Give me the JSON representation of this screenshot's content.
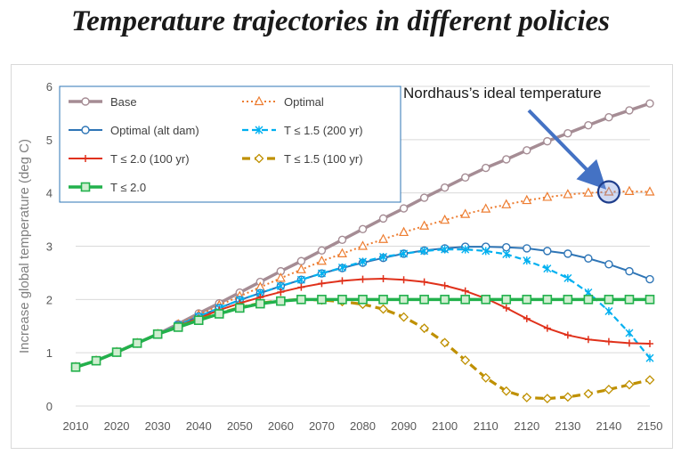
{
  "title": "Temperature trajectories in different policies",
  "chart_data": {
    "type": "line",
    "title": "Temperature trajectories in different policies",
    "xlabel": "",
    "ylabel": "Increase global temperature (deg C)",
    "xlim": [
      2010,
      2150
    ],
    "ylim": [
      0,
      6
    ],
    "x_ticks": [
      "2010",
      "2020",
      "2030",
      "2040",
      "2050",
      "2060",
      "2070",
      "2080",
      "2090",
      "2100",
      "2110",
      "2120",
      "2130",
      "2140",
      "2150"
    ],
    "y_ticks": [
      "0",
      "1",
      "2",
      "3",
      "4",
      "5",
      "6"
    ],
    "grid": "horizontal",
    "x": [
      2010,
      2015,
      2020,
      2025,
      2030,
      2035,
      2040,
      2045,
      2050,
      2055,
      2060,
      2065,
      2070,
      2075,
      2080,
      2085,
      2090,
      2095,
      2100,
      2105,
      2110,
      2115,
      2120,
      2125,
      2130,
      2135,
      2140,
      2145,
      2150
    ],
    "series": [
      {
        "name": "Base",
        "color": "#a58c94",
        "marker": "circle",
        "values": [
          0.73,
          0.85,
          1.01,
          1.18,
          1.35,
          1.54,
          1.74,
          1.93,
          2.13,
          2.33,
          2.53,
          2.72,
          2.92,
          3.12,
          3.32,
          3.52,
          3.71,
          3.91,
          4.1,
          4.29,
          4.47,
          4.63,
          4.8,
          4.97,
          5.12,
          5.27,
          5.42,
          5.55,
          5.68
        ]
      },
      {
        "name": "Optimal",
        "color": "#ed7d31",
        "marker": "triangle",
        "values": [
          0.73,
          0.85,
          1.01,
          1.18,
          1.35,
          1.53,
          1.71,
          1.89,
          2.06,
          2.23,
          2.4,
          2.56,
          2.72,
          2.86,
          3.0,
          3.13,
          3.26,
          3.38,
          3.49,
          3.6,
          3.7,
          3.78,
          3.86,
          3.92,
          3.97,
          4.0,
          4.02,
          4.03,
          4.02
        ]
      },
      {
        "name": "Optimal (alt dam)",
        "color": "#2e75b6",
        "marker": "circle",
        "values": [
          0.73,
          0.85,
          1.01,
          1.18,
          1.35,
          1.52,
          1.68,
          1.84,
          1.99,
          2.12,
          2.25,
          2.37,
          2.49,
          2.59,
          2.69,
          2.78,
          2.86,
          2.92,
          2.96,
          2.99,
          2.99,
          2.98,
          2.96,
          2.91,
          2.86,
          2.77,
          2.66,
          2.53,
          2.38
        ]
      },
      {
        "name": "T ≤ 1.5 (200 yr)",
        "color": "#00b0f0",
        "marker": "asterisk",
        "values": [
          0.73,
          0.85,
          1.01,
          1.18,
          1.35,
          1.52,
          1.68,
          1.84,
          1.99,
          2.12,
          2.25,
          2.37,
          2.49,
          2.6,
          2.71,
          2.8,
          2.86,
          2.91,
          2.94,
          2.94,
          2.91,
          2.85,
          2.73,
          2.58,
          2.4,
          2.13,
          1.78,
          1.37,
          0.9
        ]
      },
      {
        "name": "T ≤ 2.0 (100 yr)",
        "color": "#e0311b",
        "marker": "plus",
        "values": [
          0.73,
          0.85,
          1.01,
          1.18,
          1.35,
          1.5,
          1.65,
          1.8,
          1.93,
          2.04,
          2.14,
          2.23,
          2.3,
          2.35,
          2.38,
          2.39,
          2.37,
          2.33,
          2.26,
          2.16,
          2.02,
          1.84,
          1.64,
          1.46,
          1.33,
          1.25,
          1.21,
          1.18,
          1.17
        ]
      },
      {
        "name": "T ≤ 1.5 (100 yr)",
        "color": "#bf9000",
        "marker": "diamond",
        "values": [
          0.73,
          0.85,
          1.01,
          1.18,
          1.35,
          1.49,
          1.62,
          1.74,
          1.85,
          1.93,
          1.98,
          2.0,
          1.99,
          1.96,
          1.91,
          1.82,
          1.67,
          1.46,
          1.19,
          0.86,
          0.53,
          0.28,
          0.16,
          0.14,
          0.17,
          0.23,
          0.31,
          0.4,
          0.49
        ]
      },
      {
        "name": "T ≤ 2.0",
        "color": "#22b14c",
        "marker": "square",
        "values": [
          0.73,
          0.85,
          1.01,
          1.18,
          1.35,
          1.48,
          1.61,
          1.73,
          1.84,
          1.92,
          1.97,
          2.0,
          2.0,
          2.0,
          2.0,
          2.0,
          2.0,
          2.0,
          2.0,
          2.0,
          2.0,
          2.0,
          2.0,
          2.0,
          2.0,
          2.0,
          2.0,
          2.0,
          2.0
        ]
      }
    ],
    "legend": "top-left",
    "annotation": {
      "text": "Nordhaus’s ideal temperature",
      "points_to": {
        "x": 2140,
        "y": 4.02
      }
    }
  }
}
